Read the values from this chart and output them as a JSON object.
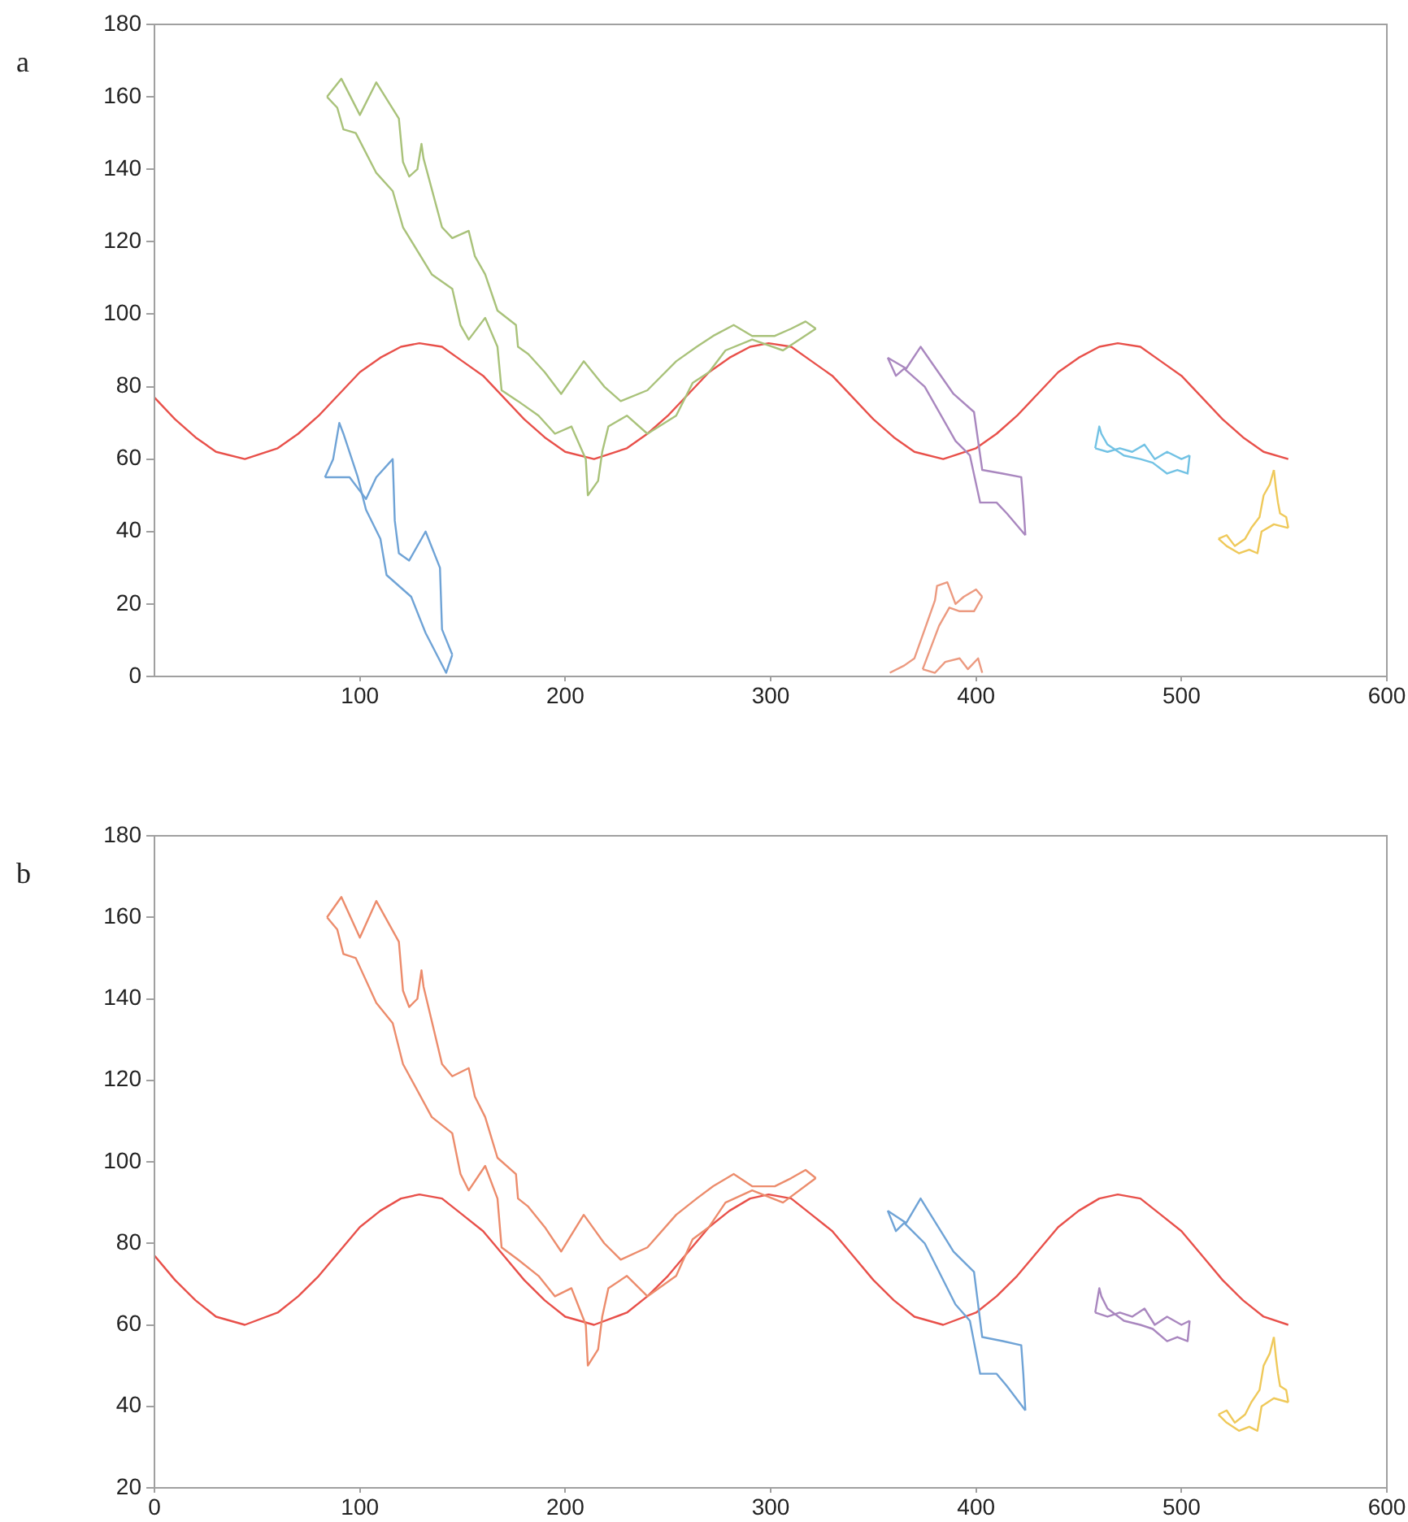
{
  "chart_data": [
    {
      "type": "line",
      "title": "a",
      "xlim": [
        0,
        600
      ],
      "xticks": [
        100,
        200,
        300,
        400,
        500,
        600
      ],
      "ylim": [
        0,
        180
      ],
      "yticks": [
        0,
        20,
        40,
        60,
        80,
        100,
        120,
        140,
        160,
        180
      ],
      "grid": false,
      "legend": false,
      "marker": "none",
      "series": [
        {
          "color": "#a9c27a",
          "x": [
            84,
            89,
            92,
            98,
            108,
            116,
            121,
            135,
            145,
            149,
            153,
            161,
            167,
            169,
            177,
            187,
            195,
            203,
            210,
            211,
            216,
            218,
            221,
            230,
            240,
            254,
            262,
            270,
            278,
            291,
            306,
            322
          ],
          "values": [
            160,
            157,
            151,
            150,
            139,
            134,
            124,
            111,
            107,
            97,
            93,
            99,
            91,
            79,
            76,
            72,
            67,
            69,
            60,
            50,
            54,
            62,
            69,
            72,
            67,
            72,
            81,
            84,
            90,
            93,
            90,
            96
          ]
        },
        {
          "color": "#a9c27a",
          "x": [
            84,
            91,
            100,
            108,
            119,
            121,
            124,
            128,
            130,
            131,
            140,
            145,
            153,
            156,
            161,
            167,
            176,
            177,
            182,
            190,
            198,
            209,
            219,
            227,
            240,
            254,
            264,
            272,
            282,
            291,
            302,
            310,
            317,
            322
          ],
          "values": [
            160,
            165,
            155,
            164,
            154,
            142,
            138,
            140,
            147,
            143,
            124,
            121,
            123,
            116,
            111,
            101,
            97,
            91,
            89,
            84,
            78,
            87,
            80,
            76,
            79,
            87,
            91,
            94,
            97,
            94,
            94,
            96,
            98,
            96
          ]
        },
        {
          "color": "#6fa3d6",
          "x": [
            83,
            95,
            103,
            108,
            116,
            117,
            119,
            124,
            132,
            139,
            140,
            145
          ],
          "values": [
            55,
            55,
            49,
            55,
            60,
            43,
            34,
            32,
            40,
            30,
            13,
            6
          ]
        },
        {
          "color": "#6fa3d6",
          "x": [
            83,
            87,
            90,
            92,
            99,
            103,
            110,
            113,
            125,
            132,
            142,
            145
          ],
          "values": [
            55,
            60,
            70,
            67,
            55,
            46,
            38,
            28,
            22,
            12,
            1,
            6
          ]
        },
        {
          "color": "#a987bf",
          "x": [
            357,
            361,
            365,
            375,
            390,
            397,
            402,
            410,
            415,
            424
          ],
          "values": [
            88,
            83,
            85,
            80,
            65,
            61,
            48,
            48,
            45,
            39
          ]
        },
        {
          "color": "#a987bf",
          "x": [
            357,
            366,
            373,
            389,
            399,
            403,
            413,
            422,
            423,
            424
          ],
          "values": [
            88,
            85,
            91,
            78,
            73,
            57,
            56,
            55,
            48,
            39
          ]
        },
        {
          "color": "#ec9a80",
          "x": [
            358,
            365,
            370,
            375,
            380,
            381,
            386,
            390,
            394,
            400,
            403
          ],
          "values": [
            1,
            3,
            5,
            13,
            21,
            25,
            26,
            20,
            22,
            24,
            22
          ]
        },
        {
          "color": "#ec9a80",
          "x": [
            374,
            378,
            382,
            387,
            392,
            399,
            403
          ],
          "values": [
            2,
            8,
            14,
            19,
            18,
            18,
            22
          ]
        },
        {
          "color": "#ec9a80",
          "x": [
            374,
            380,
            385,
            392,
            396,
            401,
            403
          ],
          "values": [
            2,
            1,
            4,
            5,
            2,
            5,
            1
          ]
        },
        {
          "color": "#72c2e4",
          "x": [
            458,
            464,
            470,
            476,
            482,
            487,
            493,
            500,
            504
          ],
          "values": [
            63,
            62,
            63,
            62,
            64,
            60,
            62,
            60,
            61
          ]
        },
        {
          "color": "#72c2e4",
          "x": [
            458,
            460,
            461,
            464,
            472,
            480,
            486,
            493,
            498,
            503,
            504
          ],
          "values": [
            63,
            69,
            67,
            64,
            61,
            60,
            59,
            56,
            57,
            56,
            61
          ]
        },
        {
          "color": "#efc95a",
          "x": [
            518,
            522,
            526,
            531,
            534,
            538,
            540,
            543,
            545
          ],
          "values": [
            38,
            39,
            36,
            38,
            41,
            44,
            50,
            53,
            57
          ]
        },
        {
          "color": "#efc95a",
          "x": [
            545,
            546,
            547,
            548,
            551,
            552
          ],
          "values": [
            57,
            52,
            48,
            45,
            44,
            41
          ]
        },
        {
          "color": "#efc95a",
          "x": [
            518,
            522,
            528,
            533,
            537,
            539,
            545,
            552
          ],
          "values": [
            38,
            36,
            34,
            35,
            34,
            40,
            42,
            41
          ]
        },
        {
          "color": "#e8504a",
          "x": [
            0,
            10,
            20,
            30,
            44,
            60,
            70,
            80,
            90,
            100,
            110,
            120,
            129,
            140,
            150,
            160,
            170,
            180,
            190,
            200,
            214,
            230,
            240,
            250,
            260,
            270,
            280,
            290,
            299,
            310,
            320,
            330,
            340,
            350,
            360,
            370,
            384,
            400,
            410,
            420,
            430,
            440,
            450,
            460,
            469,
            480,
            490,
            500,
            510,
            520,
            530,
            540,
            552
          ],
          "values": [
            77,
            71,
            66,
            62,
            60,
            63,
            67,
            72,
            78,
            84,
            88,
            91,
            92,
            91,
            87,
            83,
            77,
            71,
            66,
            62,
            60,
            63,
            67,
            72,
            78,
            84,
            88,
            91,
            92,
            91,
            87,
            83,
            77,
            71,
            66,
            62,
            60,
            63,
            67,
            72,
            78,
            84,
            88,
            91,
            92,
            91,
            87,
            83,
            77,
            71,
            66,
            62,
            60
          ]
        }
      ]
    },
    {
      "type": "line",
      "title": "b",
      "xlim": [
        0,
        600
      ],
      "xticks": [
        0,
        100,
        200,
        300,
        400,
        500,
        600
      ],
      "ylim": [
        20,
        180
      ],
      "yticks": [
        20,
        40,
        60,
        80,
        100,
        120,
        140,
        160,
        180
      ],
      "grid": false,
      "legend": false,
      "marker": "none",
      "series": [
        {
          "color": "#ec8c6c",
          "x": [
            84,
            89,
            92,
            98,
            108,
            116,
            121,
            135,
            145,
            149,
            153,
            161,
            167,
            169,
            177,
            187,
            195,
            203,
            210,
            211,
            216,
            218,
            221,
            230,
            240,
            254,
            262,
            270,
            278,
            291,
            306,
            322
          ],
          "values": [
            160,
            157,
            151,
            150,
            139,
            134,
            124,
            111,
            107,
            97,
            93,
            99,
            91,
            79,
            76,
            72,
            67,
            69,
            60,
            50,
            54,
            62,
            69,
            72,
            67,
            72,
            81,
            84,
            90,
            93,
            90,
            96
          ]
        },
        {
          "color": "#ec8c6c",
          "x": [
            84,
            91,
            100,
            108,
            119,
            121,
            124,
            128,
            130,
            131,
            140,
            145,
            153,
            156,
            161,
            167,
            176,
            177,
            182,
            190,
            198,
            209,
            219,
            227,
            240,
            254,
            264,
            272,
            282,
            291,
            302,
            310,
            317,
            322
          ],
          "values": [
            160,
            165,
            155,
            164,
            154,
            142,
            138,
            140,
            147,
            143,
            124,
            121,
            123,
            116,
            111,
            101,
            97,
            91,
            89,
            84,
            78,
            87,
            80,
            76,
            79,
            87,
            91,
            94,
            97,
            94,
            94,
            96,
            98,
            96
          ]
        },
        {
          "color": "#6fa3d6",
          "x": [
            357,
            361,
            365,
            375,
            390,
            397,
            402,
            410,
            415,
            424
          ],
          "values": [
            88,
            83,
            85,
            80,
            65,
            61,
            48,
            48,
            45,
            39
          ]
        },
        {
          "color": "#6fa3d6",
          "x": [
            357,
            366,
            373,
            389,
            399,
            403,
            413,
            422,
            423,
            424
          ],
          "values": [
            88,
            85,
            91,
            78,
            73,
            57,
            56,
            55,
            48,
            39
          ]
        },
        {
          "color": "#a987bf",
          "x": [
            458,
            464,
            470,
            476,
            482,
            487,
            493,
            500,
            504
          ],
          "values": [
            63,
            62,
            63,
            62,
            64,
            60,
            62,
            60,
            61
          ]
        },
        {
          "color": "#a987bf",
          "x": [
            458,
            460,
            461,
            464,
            472,
            480,
            486,
            493,
            498,
            503,
            504
          ],
          "values": [
            63,
            69,
            67,
            64,
            61,
            60,
            59,
            56,
            57,
            56,
            61
          ]
        },
        {
          "color": "#efc95a",
          "x": [
            518,
            522,
            526,
            531,
            534,
            538,
            540,
            543,
            545
          ],
          "values": [
            38,
            39,
            36,
            38,
            41,
            44,
            50,
            53,
            57
          ]
        },
        {
          "color": "#efc95a",
          "x": [
            545,
            546,
            547,
            548,
            551,
            552
          ],
          "values": [
            57,
            52,
            48,
            45,
            44,
            41
          ]
        },
        {
          "color": "#efc95a",
          "x": [
            518,
            522,
            528,
            533,
            537,
            539,
            545,
            552
          ],
          "values": [
            38,
            36,
            34,
            35,
            34,
            40,
            42,
            41
          ]
        },
        {
          "color": "#e8504a",
          "x": [
            0,
            10,
            20,
            30,
            44,
            60,
            70,
            80,
            90,
            100,
            110,
            120,
            129,
            140,
            150,
            160,
            170,
            180,
            190,
            200,
            214,
            230,
            240,
            250,
            260,
            270,
            280,
            290,
            299,
            310,
            320,
            330,
            340,
            350,
            360,
            370,
            384,
            400,
            410,
            420,
            430,
            440,
            450,
            460,
            469,
            480,
            490,
            500,
            510,
            520,
            530,
            540,
            552
          ],
          "values": [
            77,
            71,
            66,
            62,
            60,
            63,
            67,
            72,
            78,
            84,
            88,
            91,
            92,
            91,
            87,
            83,
            77,
            71,
            66,
            62,
            60,
            63,
            67,
            72,
            78,
            84,
            88,
            91,
            92,
            91,
            87,
            83,
            77,
            71,
            66,
            62,
            60,
            63,
            67,
            72,
            78,
            84,
            88,
            91,
            92,
            91,
            87,
            83,
            77,
            71,
            66,
            62,
            60
          ]
        }
      ]
    }
  ]
}
